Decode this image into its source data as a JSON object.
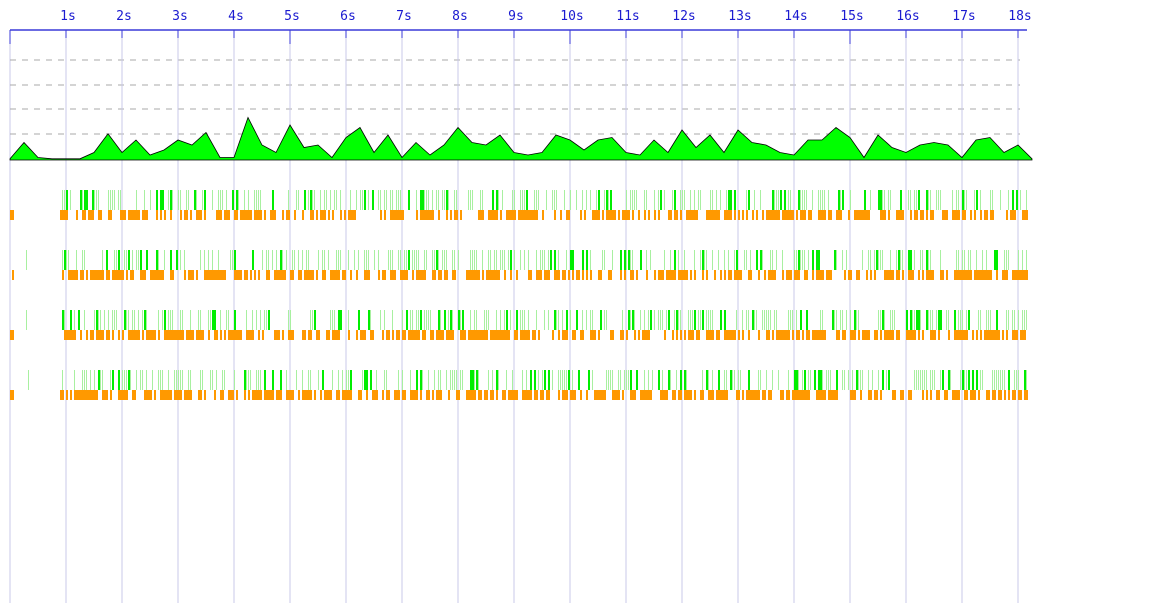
{
  "timeline": {
    "ticks": [
      "1s",
      "2s",
      "3s",
      "4s",
      "5s",
      "6s",
      "7s",
      "8s",
      "9s",
      "10s",
      "11s",
      "12s",
      "13s",
      "14s",
      "15s",
      "16s",
      "17s",
      "18s"
    ],
    "activity": {
      "x": [
        0,
        0.25,
        0.5,
        0.75,
        1,
        1.25,
        1.5,
        1.75,
        2,
        2.25,
        2.5,
        2.75,
        3,
        3.25,
        3.5,
        3.75,
        4,
        4.25,
        4.5,
        4.75,
        5,
        5.25,
        5.5,
        5.75,
        6,
        6.25,
        6.5,
        6.75,
        7,
        7.25,
        7.5,
        7.75,
        8,
        8.25,
        8.5,
        8.75,
        9,
        9.25,
        9.5,
        9.75,
        10,
        10.25,
        10.5,
        10.75,
        11,
        11.25,
        11.5,
        11.75,
        12,
        12.25,
        12.5,
        12.75,
        13,
        13.25,
        13.5,
        13.75,
        14,
        14.25,
        14.5,
        14.75,
        15,
        15.25,
        15.5,
        15.75,
        16,
        16.25,
        16.5,
        16.75,
        17,
        17.25,
        17.5,
        17.75,
        18,
        18.25
      ],
      "values": [
        0.05,
        0.7,
        0.1,
        0.05,
        0.05,
        0.05,
        0.3,
        1.05,
        0.3,
        0.8,
        0.2,
        0.4,
        0.8,
        0.6,
        1.1,
        0.1,
        0.1,
        1.7,
        0.6,
        0.3,
        1.4,
        0.5,
        0.6,
        0.1,
        0.9,
        1.3,
        0.3,
        1.0,
        0.1,
        0.7,
        0.2,
        0.6,
        1.3,
        0.7,
        0.6,
        1.0,
        0.3,
        0.2,
        0.3,
        1.0,
        0.8,
        0.4,
        0.8,
        0.9,
        0.3,
        0.2,
        0.8,
        0.3,
        1.2,
        0.5,
        1.0,
        0.3,
        1.2,
        0.7,
        0.6,
        0.3,
        0.2,
        0.8,
        0.8,
        1.3,
        0.9,
        0.1,
        1.0,
        0.5,
        0.3,
        0.6,
        0.7,
        0.6,
        0.1,
        0.8,
        0.9,
        0.3,
        0.6,
        0.05
      ]
    }
  }
}
